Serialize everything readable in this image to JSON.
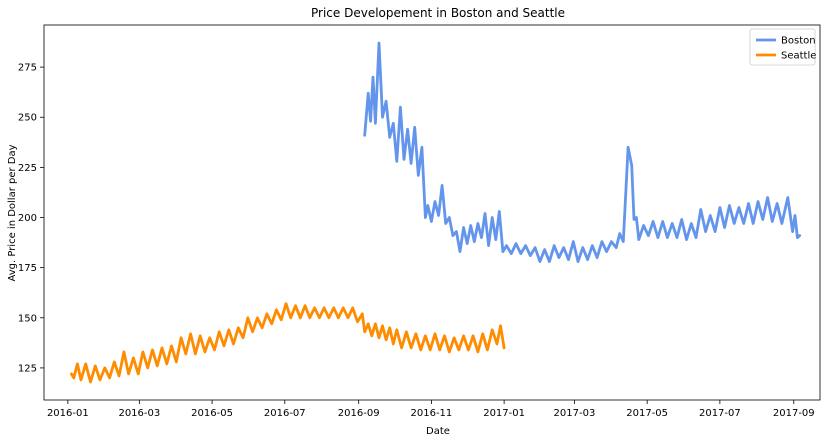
{
  "chart_data": {
    "type": "line",
    "title": "Price Developement in Boston and Seattle",
    "xlabel": "Date",
    "ylabel": "Avg. Price in Dollar per Day",
    "xlim": [
      "2015-12-12",
      "2017-09-23"
    ],
    "ylim": [
      109,
      296
    ],
    "x_ticks": [
      "2016-01",
      "2016-03",
      "2016-05",
      "2016-07",
      "2016-09",
      "2016-11",
      "2017-01",
      "2017-03",
      "2017-05",
      "2017-07",
      "2017-09"
    ],
    "y_ticks": [
      125,
      150,
      175,
      200,
      225,
      250,
      275
    ],
    "grid": false,
    "legend_position": "top-right",
    "series": [
      {
        "name": "Boston",
        "color": "#6495ed",
        "points": [
          [
            "2016-09-06",
            241
          ],
          [
            "2016-09-09",
            262
          ],
          [
            "2016-09-11",
            248
          ],
          [
            "2016-09-13",
            270
          ],
          [
            "2016-09-15",
            247
          ],
          [
            "2016-09-18",
            287
          ],
          [
            "2016-09-21",
            250
          ],
          [
            "2016-09-24",
            258
          ],
          [
            "2016-09-27",
            240
          ],
          [
            "2016-09-30",
            247
          ],
          [
            "2016-10-03",
            228
          ],
          [
            "2016-10-06",
            255
          ],
          [
            "2016-10-09",
            229
          ],
          [
            "2016-10-12",
            244
          ],
          [
            "2016-10-15",
            227
          ],
          [
            "2016-10-18",
            245
          ],
          [
            "2016-10-21",
            221
          ],
          [
            "2016-10-24",
            235
          ],
          [
            "2016-10-27",
            200
          ],
          [
            "2016-10-29",
            206
          ],
          [
            "2016-11-01",
            198
          ],
          [
            "2016-11-04",
            208
          ],
          [
            "2016-11-07",
            201
          ],
          [
            "2016-11-10",
            216
          ],
          [
            "2016-11-13",
            197
          ],
          [
            "2016-11-16",
            200
          ],
          [
            "2016-11-19",
            191
          ],
          [
            "2016-11-22",
            193
          ],
          [
            "2016-11-25",
            183
          ],
          [
            "2016-11-28",
            195
          ],
          [
            "2016-12-01",
            187
          ],
          [
            "2016-12-04",
            196
          ],
          [
            "2016-12-07",
            188
          ],
          [
            "2016-12-10",
            197
          ],
          [
            "2016-12-13",
            190
          ],
          [
            "2016-12-16",
            202
          ],
          [
            "2016-12-19",
            186
          ],
          [
            "2016-12-22",
            200
          ],
          [
            "2016-12-25",
            189
          ],
          [
            "2016-12-28",
            203
          ],
          [
            "2016-12-31",
            183
          ],
          [
            "2017-01-03",
            186
          ],
          [
            "2017-01-07",
            182
          ],
          [
            "2017-01-11",
            187
          ],
          [
            "2017-01-15",
            182
          ],
          [
            "2017-01-19",
            186
          ],
          [
            "2017-01-23",
            181
          ],
          [
            "2017-01-27",
            185
          ],
          [
            "2017-01-31",
            178
          ],
          [
            "2017-02-04",
            184
          ],
          [
            "2017-02-08",
            178
          ],
          [
            "2017-02-12",
            186
          ],
          [
            "2017-02-16",
            180
          ],
          [
            "2017-02-20",
            185
          ],
          [
            "2017-02-24",
            179
          ],
          [
            "2017-02-28",
            188
          ],
          [
            "2017-03-04",
            178
          ],
          [
            "2017-03-08",
            185
          ],
          [
            "2017-03-12",
            179
          ],
          [
            "2017-03-16",
            186
          ],
          [
            "2017-03-20",
            180
          ],
          [
            "2017-03-24",
            188
          ],
          [
            "2017-03-28",
            183
          ],
          [
            "2017-04-01",
            188
          ],
          [
            "2017-04-05",
            185
          ],
          [
            "2017-04-08",
            192
          ],
          [
            "2017-04-11",
            188
          ],
          [
            "2017-04-15",
            235
          ],
          [
            "2017-04-18",
            226
          ],
          [
            "2017-04-20",
            199
          ],
          [
            "2017-04-22",
            200
          ],
          [
            "2017-04-24",
            189
          ],
          [
            "2017-04-28",
            196
          ],
          [
            "2017-05-02",
            191
          ],
          [
            "2017-05-06",
            198
          ],
          [
            "2017-05-10",
            190
          ],
          [
            "2017-05-14",
            198
          ],
          [
            "2017-05-18",
            190
          ],
          [
            "2017-05-22",
            197
          ],
          [
            "2017-05-26",
            190
          ],
          [
            "2017-05-30",
            199
          ],
          [
            "2017-06-03",
            189
          ],
          [
            "2017-06-07",
            197
          ],
          [
            "2017-06-11",
            190
          ],
          [
            "2017-06-15",
            204
          ],
          [
            "2017-06-19",
            193
          ],
          [
            "2017-06-23",
            201
          ],
          [
            "2017-06-27",
            193
          ],
          [
            "2017-07-01",
            205
          ],
          [
            "2017-07-05",
            195
          ],
          [
            "2017-07-09",
            206
          ],
          [
            "2017-07-13",
            197
          ],
          [
            "2017-07-17",
            205
          ],
          [
            "2017-07-21",
            197
          ],
          [
            "2017-07-25",
            207
          ],
          [
            "2017-07-29",
            197
          ],
          [
            "2017-08-02",
            208
          ],
          [
            "2017-08-06",
            199
          ],
          [
            "2017-08-10",
            210
          ],
          [
            "2017-08-14",
            198
          ],
          [
            "2017-08-18",
            207
          ],
          [
            "2017-08-22",
            197
          ],
          [
            "2017-08-27",
            210
          ],
          [
            "2017-08-31",
            193
          ],
          [
            "2017-09-02",
            201
          ],
          [
            "2017-09-04",
            190
          ],
          [
            "2017-09-06",
            191
          ]
        ]
      },
      {
        "name": "Seattle",
        "color": "#ff8c00",
        "points": [
          [
            "2016-01-04",
            122
          ],
          [
            "2016-01-06",
            120
          ],
          [
            "2016-01-09",
            127
          ],
          [
            "2016-01-12",
            119
          ],
          [
            "2016-01-16",
            127
          ],
          [
            "2016-01-20",
            118
          ],
          [
            "2016-01-24",
            126
          ],
          [
            "2016-01-28",
            119
          ],
          [
            "2016-02-01",
            125
          ],
          [
            "2016-02-05",
            120
          ],
          [
            "2016-02-09",
            128
          ],
          [
            "2016-02-13",
            121
          ],
          [
            "2016-02-17",
            133
          ],
          [
            "2016-02-21",
            122
          ],
          [
            "2016-02-25",
            130
          ],
          [
            "2016-02-29",
            122
          ],
          [
            "2016-03-04",
            133
          ],
          [
            "2016-03-08",
            125
          ],
          [
            "2016-03-12",
            134
          ],
          [
            "2016-03-16",
            126
          ],
          [
            "2016-03-20",
            135
          ],
          [
            "2016-03-24",
            127
          ],
          [
            "2016-03-28",
            136
          ],
          [
            "2016-04-01",
            128
          ],
          [
            "2016-04-05",
            140
          ],
          [
            "2016-04-09",
            132
          ],
          [
            "2016-04-13",
            142
          ],
          [
            "2016-04-17",
            132
          ],
          [
            "2016-04-21",
            141
          ],
          [
            "2016-04-25",
            133
          ],
          [
            "2016-04-29",
            140
          ],
          [
            "2016-05-03",
            134
          ],
          [
            "2016-05-07",
            143
          ],
          [
            "2016-05-11",
            136
          ],
          [
            "2016-05-15",
            144
          ],
          [
            "2016-05-19",
            137
          ],
          [
            "2016-05-23",
            145
          ],
          [
            "2016-05-27",
            140
          ],
          [
            "2016-05-31",
            150
          ],
          [
            "2016-06-04",
            143
          ],
          [
            "2016-06-08",
            150
          ],
          [
            "2016-06-12",
            145
          ],
          [
            "2016-06-16",
            152
          ],
          [
            "2016-06-20",
            147
          ],
          [
            "2016-06-24",
            154
          ],
          [
            "2016-06-28",
            149
          ],
          [
            "2016-07-02",
            157
          ],
          [
            "2016-07-06",
            150
          ],
          [
            "2016-07-10",
            156
          ],
          [
            "2016-07-14",
            150
          ],
          [
            "2016-07-18",
            156
          ],
          [
            "2016-07-22",
            150
          ],
          [
            "2016-07-26",
            155
          ],
          [
            "2016-07-30",
            150
          ],
          [
            "2016-08-03",
            155
          ],
          [
            "2016-08-07",
            150
          ],
          [
            "2016-08-11",
            155
          ],
          [
            "2016-08-15",
            150
          ],
          [
            "2016-08-19",
            155
          ],
          [
            "2016-08-23",
            150
          ],
          [
            "2016-08-27",
            155
          ],
          [
            "2016-08-31",
            148
          ],
          [
            "2016-09-04",
            152
          ],
          [
            "2016-09-06",
            143
          ],
          [
            "2016-09-09",
            147
          ],
          [
            "2016-09-12",
            141
          ],
          [
            "2016-09-15",
            147
          ],
          [
            "2016-09-18",
            140
          ],
          [
            "2016-09-21",
            146
          ],
          [
            "2016-09-24",
            139
          ],
          [
            "2016-09-27",
            145
          ],
          [
            "2016-09-30",
            137
          ],
          [
            "2016-10-03",
            144
          ],
          [
            "2016-10-07",
            135
          ],
          [
            "2016-10-11",
            143
          ],
          [
            "2016-10-15",
            135
          ],
          [
            "2016-10-19",
            142
          ],
          [
            "2016-10-23",
            134
          ],
          [
            "2016-10-27",
            141
          ],
          [
            "2016-10-31",
            134
          ],
          [
            "2016-11-04",
            142
          ],
          [
            "2016-11-08",
            134
          ],
          [
            "2016-11-12",
            141
          ],
          [
            "2016-11-16",
            133
          ],
          [
            "2016-11-20",
            140
          ],
          [
            "2016-11-24",
            134
          ],
          [
            "2016-11-28",
            141
          ],
          [
            "2016-12-02",
            134
          ],
          [
            "2016-12-06",
            141
          ],
          [
            "2016-12-10",
            133
          ],
          [
            "2016-12-14",
            142
          ],
          [
            "2016-12-18",
            134
          ],
          [
            "2016-12-22",
            144
          ],
          [
            "2016-12-26",
            137
          ],
          [
            "2016-12-29",
            146
          ],
          [
            "2017-01-01",
            135
          ]
        ]
      }
    ]
  }
}
